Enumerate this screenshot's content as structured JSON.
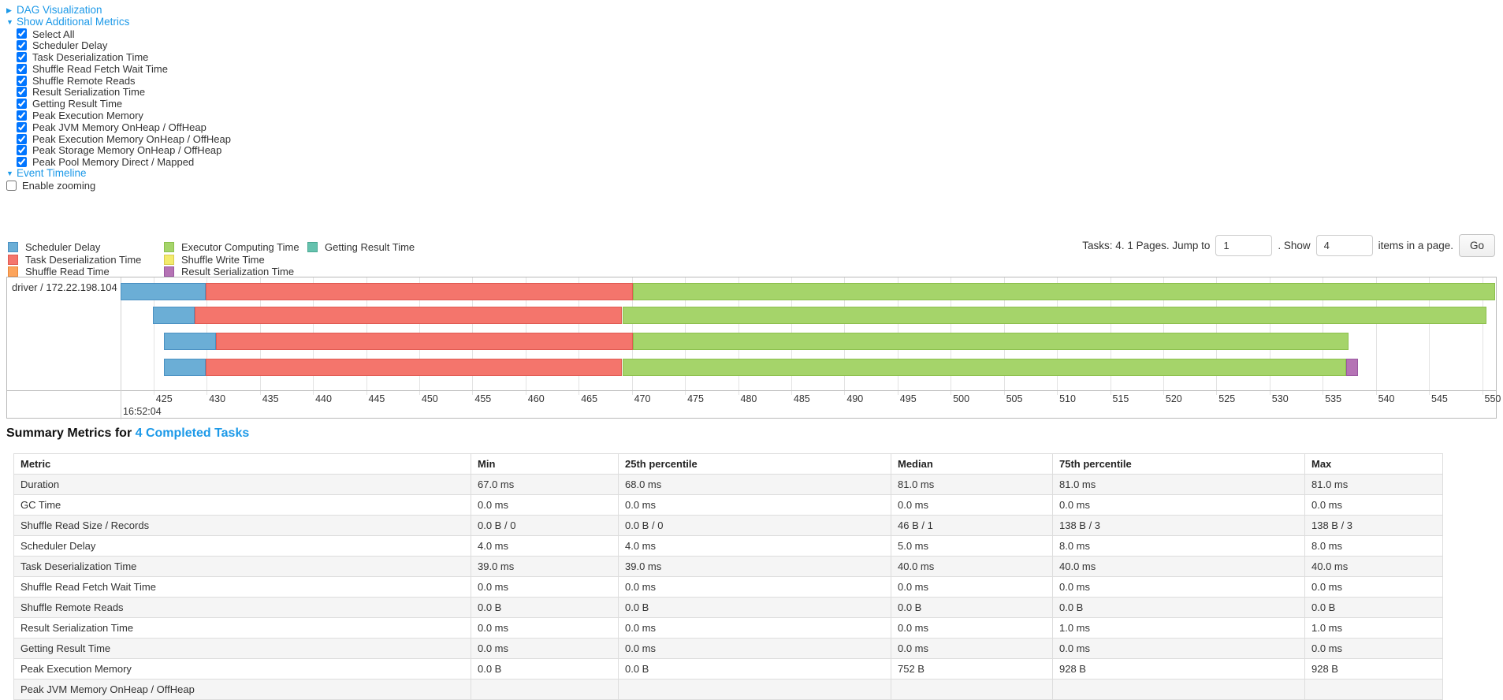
{
  "toggles": {
    "dag": {
      "label": "DAG Visualization",
      "arrow": "▶"
    },
    "metrics": {
      "label": "Show Additional Metrics",
      "arrow": "▼"
    },
    "timeline": {
      "label": "Event Timeline",
      "arrow": "▼"
    }
  },
  "metric_checkboxes": [
    {
      "label": "Select All",
      "checked": true
    },
    {
      "label": "Scheduler Delay",
      "checked": true
    },
    {
      "label": "Task Deserialization Time",
      "checked": true
    },
    {
      "label": "Shuffle Read Fetch Wait Time",
      "checked": true
    },
    {
      "label": "Shuffle Remote Reads",
      "checked": true
    },
    {
      "label": "Result Serialization Time",
      "checked": true
    },
    {
      "label": "Getting Result Time",
      "checked": true
    },
    {
      "label": "Peak Execution Memory",
      "checked": true
    },
    {
      "label": "Peak JVM Memory OnHeap / OffHeap",
      "checked": true
    },
    {
      "label": "Peak Execution Memory OnHeap / OffHeap",
      "checked": true
    },
    {
      "label": "Peak Storage Memory OnHeap / OffHeap",
      "checked": true
    },
    {
      "label": "Peak Pool Memory Direct / Mapped",
      "checked": true
    }
  ],
  "enable_zooming": {
    "label": "Enable zooming",
    "checked": false
  },
  "pagination": {
    "tasks_text": "Tasks: 4. 1 Pages. Jump to",
    "jump_value": "1",
    "show_text": ". Show",
    "show_value": "4",
    "items_text": "items in a page.",
    "go_label": "Go"
  },
  "chart_data": {
    "type": "timeline-bars",
    "group_label": "driver / 172.22.198.104",
    "axis": {
      "min": 421.9,
      "max": 551.3,
      "tick_start": 425,
      "tick_end": 550,
      "tick_step": 5,
      "time_label": "16:52:04"
    },
    "legend": [
      {
        "key": "scheduler-delay",
        "label": "Scheduler Delay",
        "fill": "#6BAED6",
        "border": "#4A90C2"
      },
      {
        "key": "task-deserialization",
        "label": "Task Deserialization Time",
        "fill": "#F4756C",
        "border": "#E05A52"
      },
      {
        "key": "shuffle-read",
        "label": "Shuffle Read Time",
        "fill": "#FCA45C",
        "border": "#E8883C"
      },
      {
        "key": "executor-computing",
        "label": "Executor Computing Time",
        "fill": "#A5D46A",
        "border": "#8CBF4D"
      },
      {
        "key": "shuffle-write",
        "label": "Shuffle Write Time",
        "fill": "#F3EB6C",
        "border": "#D9CC4E"
      },
      {
        "key": "result-serialization",
        "label": "Result Serialization Time",
        "fill": "#B573B5",
        "border": "#9A58A0"
      },
      {
        "key": "getting-result",
        "label": "Getting Result Time",
        "fill": "#65C2AE",
        "border": "#4AA893"
      }
    ],
    "tasks": [
      {
        "segments": [
          {
            "type": "scheduler-delay",
            "start": 421.9,
            "end": 429.9
          },
          {
            "type": "task-deserialization",
            "start": 429.9,
            "end": 470.1
          },
          {
            "type": "executor-computing",
            "start": 470.1,
            "end": 551.2
          }
        ]
      },
      {
        "segments": [
          {
            "type": "scheduler-delay",
            "start": 424.9,
            "end": 428.9
          },
          {
            "type": "task-deserialization",
            "start": 428.9,
            "end": 469.1
          },
          {
            "type": "executor-computing",
            "start": 469.1,
            "end": 550.4
          }
        ]
      },
      {
        "segments": [
          {
            "type": "scheduler-delay",
            "start": 426.0,
            "end": 430.9
          },
          {
            "type": "task-deserialization",
            "start": 430.9,
            "end": 470.1
          },
          {
            "type": "executor-computing",
            "start": 470.1,
            "end": 537.4
          }
        ]
      },
      {
        "segments": [
          {
            "type": "scheduler-delay",
            "start": 426.0,
            "end": 429.9
          },
          {
            "type": "task-deserialization",
            "start": 429.9,
            "end": 469.1
          },
          {
            "type": "executor-computing",
            "start": 469.1,
            "end": 537.2
          },
          {
            "type": "result-serialization",
            "start": 537.2,
            "end": 538.3
          }
        ]
      }
    ]
  },
  "summary": {
    "title_prefix": "Summary Metrics for ",
    "title_link": "4 Completed Tasks",
    "columns": [
      "Metric",
      "Min",
      "25th percentile",
      "Median",
      "75th percentile",
      "Max"
    ],
    "rows": [
      {
        "metric": "Duration",
        "values": [
          "67.0 ms",
          "68.0 ms",
          "81.0 ms",
          "81.0 ms",
          "81.0 ms"
        ]
      },
      {
        "metric": "GC Time",
        "values": [
          "0.0 ms",
          "0.0 ms",
          "0.0 ms",
          "0.0 ms",
          "0.0 ms"
        ]
      },
      {
        "metric": "Shuffle Read Size / Records",
        "values": [
          "0.0 B / 0",
          "0.0 B / 0",
          "46 B / 1",
          "138 B / 3",
          "138 B / 3"
        ]
      },
      {
        "metric": "Scheduler Delay",
        "values": [
          "4.0 ms",
          "4.0 ms",
          "5.0 ms",
          "8.0 ms",
          "8.0 ms"
        ]
      },
      {
        "metric": "Task Deserialization Time",
        "values": [
          "39.0 ms",
          "39.0 ms",
          "40.0 ms",
          "40.0 ms",
          "40.0 ms"
        ]
      },
      {
        "metric": "Shuffle Read Fetch Wait Time",
        "values": [
          "0.0 ms",
          "0.0 ms",
          "0.0 ms",
          "0.0 ms",
          "0.0 ms"
        ]
      },
      {
        "metric": "Shuffle Remote Reads",
        "values": [
          "0.0 B",
          "0.0 B",
          "0.0 B",
          "0.0 B",
          "0.0 B"
        ]
      },
      {
        "metric": "Result Serialization Time",
        "values": [
          "0.0 ms",
          "0.0 ms",
          "0.0 ms",
          "1.0 ms",
          "1.0 ms"
        ]
      },
      {
        "metric": "Getting Result Time",
        "values": [
          "0.0 ms",
          "0.0 ms",
          "0.0 ms",
          "0.0 ms",
          "0.0 ms"
        ]
      },
      {
        "metric": "Peak Execution Memory",
        "values": [
          "0.0 B",
          "0.0 B",
          "752 B",
          "928 B",
          "928 B"
        ]
      },
      {
        "metric": "Peak JVM Memory OnHeap / OffHeap",
        "values": [
          "",
          "",
          "",
          "",
          ""
        ]
      }
    ]
  }
}
